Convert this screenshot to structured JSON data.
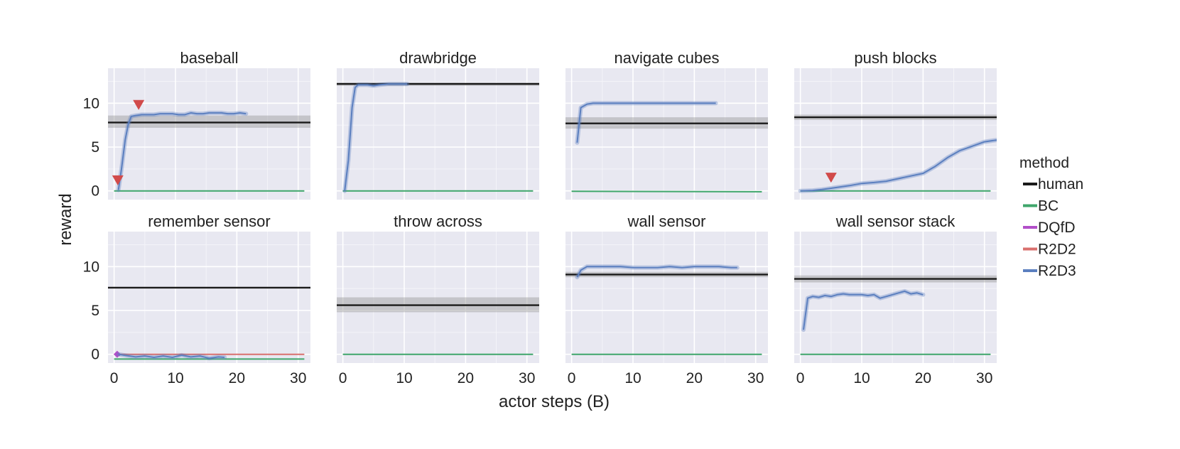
{
  "chart_data": {
    "type": "line",
    "xlabel": "actor steps (B)",
    "ylabel": "reward",
    "xlim": [
      -1,
      32
    ],
    "ylim": [
      -1,
      14
    ],
    "xticks": [
      0,
      10,
      20,
      30
    ],
    "yticks": [
      0,
      5,
      10
    ],
    "grid": true,
    "legend": {
      "title": "method",
      "placement": "right",
      "entries": [
        {
          "name": "human",
          "color": "#1a1a1a"
        },
        {
          "name": "BC",
          "color": "#3fa66b"
        },
        {
          "name": "DQfD",
          "color": "#b24fc9"
        },
        {
          "name": "R2D2",
          "color": "#d9706e"
        },
        {
          "name": "R2D3",
          "color": "#5b7fbf"
        }
      ]
    },
    "panels": [
      {
        "title": "baseball",
        "human": {
          "value": 7.8,
          "band": [
            7.2,
            8.6
          ]
        },
        "series": [
          {
            "name": "BC",
            "x": [
              0,
              31
            ],
            "y": [
              0,
              0
            ]
          },
          {
            "name": "R2D3",
            "x": [
              0.7,
              1.2,
              1.8,
              2.3,
              2.8,
              3.5,
              4.5,
              5.5,
              6.5,
              7.5,
              8.5,
              9.5,
              10.5,
              11.5,
              12.5,
              13.5,
              14.5,
              15.5,
              16.5,
              17.5,
              18.5,
              19.5,
              20.5,
              21.5
            ],
            "y": [
              0.1,
              2.5,
              5.8,
              7.6,
              8.5,
              8.6,
              8.7,
              8.7,
              8.7,
              8.8,
              8.8,
              8.8,
              8.7,
              8.7,
              8.9,
              8.8,
              8.8,
              8.9,
              8.9,
              8.9,
              8.8,
              8.8,
              8.9,
              8.8
            ]
          }
        ],
        "markers": [
          {
            "x": 0.6,
            "y": 1.2
          },
          {
            "x": 4.0,
            "y": 9.8
          }
        ]
      },
      {
        "title": "drawbridge",
        "human": {
          "value": 12.2,
          "band": [
            12.0,
            12.4
          ]
        },
        "series": [
          {
            "name": "BC",
            "x": [
              0,
              31
            ],
            "y": [
              0,
              0
            ]
          },
          {
            "name": "R2D3",
            "x": [
              0.3,
              0.9,
              1.5,
              2.0,
              2.5,
              3.2,
              4.0,
              5.0,
              6.0,
              7.5,
              9.0,
              10.5
            ],
            "y": [
              0.0,
              3.5,
              9.5,
              11.8,
              12.1,
              12.1,
              12.1,
              12.0,
              12.1,
              12.2,
              12.2,
              12.2
            ]
          }
        ],
        "markers": []
      },
      {
        "title": "navigate cubes",
        "human": {
          "value": 7.7,
          "band": [
            7.1,
            8.4
          ]
        },
        "series": [
          {
            "name": "BC",
            "x": [
              0,
              31
            ],
            "y": [
              -0.05,
              -0.1
            ]
          },
          {
            "name": "R2D3",
            "x": [
              0.9,
              1.5,
              2.5,
              3.5,
              5,
              8,
              11,
              14,
              17,
              20,
              23.5
            ],
            "y": [
              5.5,
              9.5,
              9.9,
              10.0,
              10.0,
              10.0,
              10.0,
              10.0,
              10.0,
              10.0,
              10.0
            ]
          }
        ],
        "markers": []
      },
      {
        "title": "push blocks",
        "human": {
          "value": 8.4,
          "band": [
            8.1,
            8.7
          ]
        },
        "series": [
          {
            "name": "BC",
            "x": [
              0,
              31
            ],
            "y": [
              0,
              0
            ]
          },
          {
            "name": "R2D3",
            "x": [
              0,
              2,
              3.5,
              5,
              6.5,
              8,
              10,
              12,
              14,
              16,
              18,
              20,
              22,
              24,
              26,
              28,
              30,
              32
            ],
            "y": [
              0.0,
              0.05,
              0.15,
              0.3,
              0.45,
              0.6,
              0.85,
              0.95,
              1.1,
              1.4,
              1.7,
              2.0,
              2.8,
              3.8,
              4.6,
              5.1,
              5.6,
              5.8
            ]
          }
        ],
        "markers": [
          {
            "x": 5.0,
            "y": 1.5
          }
        ]
      },
      {
        "title": "remember sensor",
        "human": {
          "value": 7.6,
          "band": [
            7.5,
            7.7
          ]
        },
        "series": [
          {
            "name": "BC",
            "x": [
              0,
              31
            ],
            "y": [
              -0.55,
              -0.55
            ]
          },
          {
            "name": "R2D2",
            "x": [
              0,
              31
            ],
            "y": [
              0.0,
              0.0
            ]
          },
          {
            "name": "DQfD",
            "x": [
              0.5,
              1.0
            ],
            "y": [
              0.0,
              -0.1
            ]
          },
          {
            "name": "R2D3",
            "x": [
              0.7,
              2,
              3.5,
              5,
              6.5,
              8,
              9.5,
              11,
              12.5,
              14,
              15.5,
              17,
              18
            ],
            "y": [
              0.0,
              -0.15,
              -0.3,
              -0.2,
              -0.35,
              -0.2,
              -0.35,
              -0.1,
              -0.3,
              -0.2,
              -0.45,
              -0.3,
              -0.35
            ]
          }
        ],
        "markers": []
      },
      {
        "title": "throw across",
        "human": {
          "value": 5.6,
          "band": [
            4.8,
            6.5
          ]
        },
        "series": [
          {
            "name": "BC",
            "x": [
              0,
              31
            ],
            "y": [
              0,
              0
            ]
          }
        ],
        "markers": []
      },
      {
        "title": "wall sensor",
        "human": {
          "value": 9.1,
          "band": [
            8.8,
            9.4
          ]
        },
        "series": [
          {
            "name": "BC",
            "x": [
              0,
              31
            ],
            "y": [
              0,
              0
            ]
          },
          {
            "name": "R2D3",
            "x": [
              0.9,
              1.5,
              2.5,
              4,
              6,
              8,
              10,
              12,
              14,
              16,
              18,
              20,
              22,
              24,
              26,
              27
            ],
            "y": [
              8.8,
              9.6,
              10.0,
              10.0,
              10.0,
              10.0,
              9.9,
              9.9,
              9.9,
              10.0,
              9.9,
              10.0,
              10.0,
              10.0,
              9.9,
              9.9
            ]
          }
        ],
        "markers": []
      },
      {
        "title": "wall sensor stack",
        "human": {
          "value": 8.6,
          "band": [
            8.2,
            9.0
          ]
        },
        "series": [
          {
            "name": "BC",
            "x": [
              0,
              31
            ],
            "y": [
              0,
              0
            ]
          },
          {
            "name": "R2D3",
            "x": [
              0.5,
              1.2,
              2,
              3,
              4,
              5,
              6,
              7,
              8,
              9,
              10,
              11,
              12,
              13,
              14,
              15,
              16,
              17,
              18,
              19,
              20
            ],
            "y": [
              2.8,
              6.4,
              6.6,
              6.5,
              6.7,
              6.6,
              6.8,
              6.9,
              6.8,
              6.8,
              6.8,
              6.7,
              6.8,
              6.4,
              6.6,
              6.8,
              7.0,
              7.2,
              6.9,
              7.0,
              6.8
            ]
          }
        ],
        "markers": []
      }
    ]
  }
}
